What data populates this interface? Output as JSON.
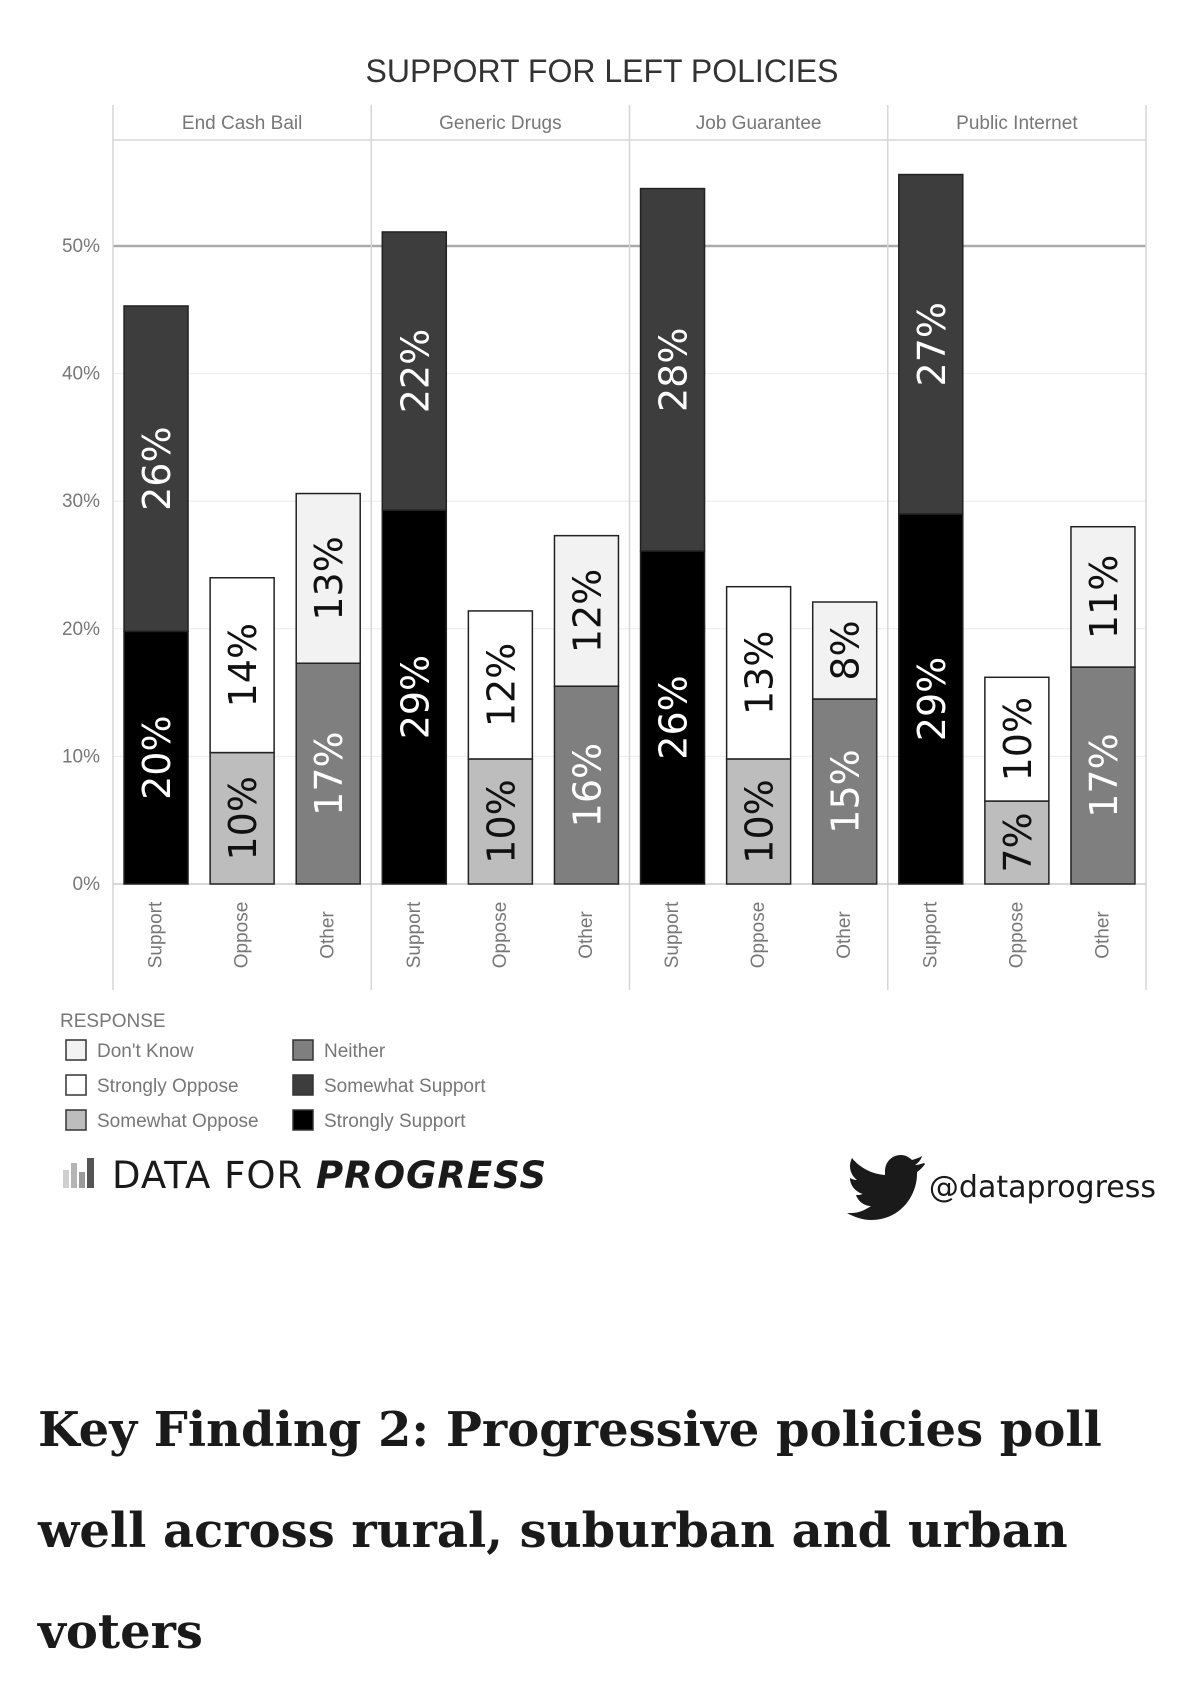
{
  "chart_data": {
    "type": "bar",
    "stacked": true,
    "title": "SUPPORT FOR LEFT POLICIES",
    "panels": [
      "End Cash Bail",
      "Generic Drugs",
      "Job Guarantee",
      "Public Internet"
    ],
    "categories": [
      "Support",
      "Oppose",
      "Other"
    ],
    "y_ticks": [
      "0%",
      "10%",
      "20%",
      "30%",
      "40%",
      "50%"
    ],
    "ylim": [
      0,
      58
    ],
    "reference_line": 50,
    "legend_title": "RESPONSE",
    "legend": [
      {
        "key": "dont_know",
        "label": "Don't Know",
        "color": "#f2f2f2"
      },
      {
        "key": "strongly_oppose",
        "label": "Strongly Oppose",
        "color": "#ffffff"
      },
      {
        "key": "somewhat_oppose",
        "label": "Somewhat Oppose",
        "color": "#bdbdbd"
      },
      {
        "key": "neither",
        "label": "Neither",
        "color": "#7f7f7f"
      },
      {
        "key": "somewhat_support",
        "label": "Somewhat Support",
        "color": "#3d3d3d"
      },
      {
        "key": "strongly_support",
        "label": "Strongly Support",
        "color": "#000000"
      }
    ],
    "bars": [
      {
        "panel": 0,
        "category": "Support",
        "segments": [
          {
            "key": "strongly_support",
            "value": 19.8,
            "label": "20%"
          },
          {
            "key": "somewhat_support",
            "value": 25.5,
            "label": "26%"
          }
        ]
      },
      {
        "panel": 0,
        "category": "Oppose",
        "segments": [
          {
            "key": "somewhat_oppose",
            "value": 10.3,
            "label": "10%"
          },
          {
            "key": "strongly_oppose",
            "value": 13.7,
            "label": "14%"
          }
        ]
      },
      {
        "panel": 0,
        "category": "Other",
        "segments": [
          {
            "key": "neither",
            "value": 17.3,
            "label": "17%"
          },
          {
            "key": "dont_know",
            "value": 13.3,
            "label": "13%"
          }
        ]
      },
      {
        "panel": 1,
        "category": "Support",
        "segments": [
          {
            "key": "strongly_support",
            "value": 29.3,
            "label": "29%"
          },
          {
            "key": "somewhat_support",
            "value": 21.8,
            "label": "22%"
          }
        ]
      },
      {
        "panel": 1,
        "category": "Oppose",
        "segments": [
          {
            "key": "somewhat_oppose",
            "value": 9.8,
            "label": "10%"
          },
          {
            "key": "strongly_oppose",
            "value": 11.6,
            "label": "12%"
          }
        ]
      },
      {
        "panel": 1,
        "category": "Other",
        "segments": [
          {
            "key": "neither",
            "value": 15.5,
            "label": "16%"
          },
          {
            "key": "dont_know",
            "value": 11.8,
            "label": "12%"
          }
        ]
      },
      {
        "panel": 2,
        "category": "Support",
        "segments": [
          {
            "key": "strongly_support",
            "value": 26.1,
            "label": "26%"
          },
          {
            "key": "somewhat_support",
            "value": 28.4,
            "label": "28%"
          }
        ]
      },
      {
        "panel": 2,
        "category": "Oppose",
        "segments": [
          {
            "key": "somewhat_oppose",
            "value": 9.8,
            "label": "10%"
          },
          {
            "key": "strongly_oppose",
            "value": 13.5,
            "label": "13%"
          }
        ]
      },
      {
        "panel": 2,
        "category": "Other",
        "segments": [
          {
            "key": "neither",
            "value": 14.5,
            "label": "15%"
          },
          {
            "key": "dont_know",
            "value": 7.6,
            "label": "8%"
          }
        ]
      },
      {
        "panel": 3,
        "category": "Support",
        "segments": [
          {
            "key": "strongly_support",
            "value": 29.0,
            "label": "29%"
          },
          {
            "key": "somewhat_support",
            "value": 26.6,
            "label": "27%"
          }
        ]
      },
      {
        "panel": 3,
        "category": "Oppose",
        "segments": [
          {
            "key": "somewhat_oppose",
            "value": 6.5,
            "label": "7%"
          },
          {
            "key": "strongly_oppose",
            "value": 9.7,
            "label": "10%"
          }
        ]
      },
      {
        "panel": 3,
        "category": "Other",
        "segments": [
          {
            "key": "neither",
            "value": 17.0,
            "label": "17%"
          },
          {
            "key": "dont_know",
            "value": 11.0,
            "label": "11%"
          }
        ]
      }
    ]
  },
  "branding": {
    "logo_text_regular": "DATA FOR ",
    "logo_text_bold": "PROGRESS",
    "twitter_handle": "@dataprogress",
    "twitter_icon": "twitter-bird-icon"
  },
  "footer": {
    "heading": "Key Finding 2: Progressive policies poll well across rural, suburban and urban voters"
  }
}
